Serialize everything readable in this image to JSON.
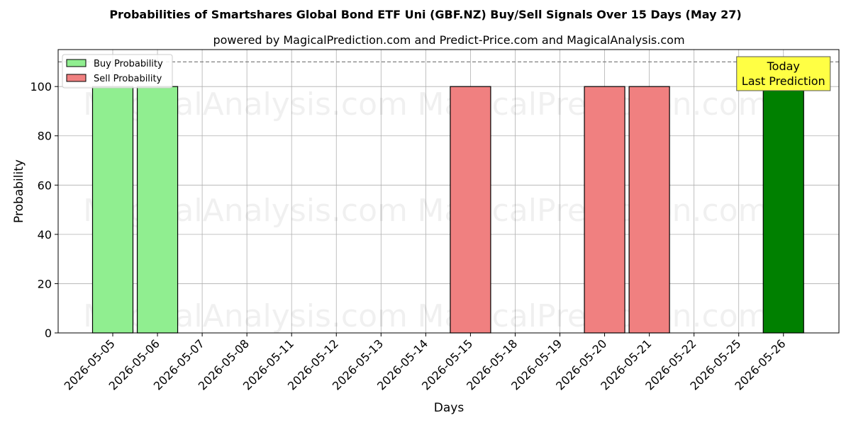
{
  "chart_data": {
    "type": "bar",
    "title": "Probabilities of Smartshares Global Bond ETF Uni (GBF.NZ) Buy/Sell Signals Over 15 Days (May 27)",
    "subtitle": "powered by MagicalPrediction.com and Predict-Price.com and MagicalAnalysis.com",
    "xlabel": "Days",
    "ylabel": "Probability",
    "ylim": [
      0,
      115
    ],
    "yticks": [
      0,
      20,
      40,
      60,
      80,
      100
    ],
    "grid": true,
    "legend_position": "top-left",
    "categories": [
      "2026-05-05",
      "2026-05-06",
      "2026-05-07",
      "2026-05-08",
      "2026-05-11",
      "2026-05-12",
      "2026-05-13",
      "2026-05-14",
      "2026-05-15",
      "2026-05-18",
      "2026-05-19",
      "2026-05-20",
      "2026-05-21",
      "2026-05-22",
      "2026-05-25",
      "2026-05-26"
    ],
    "series": [
      {
        "name": "Buy Probability",
        "color": "#90ee90",
        "values": [
          100,
          100,
          0,
          0,
          0,
          0,
          0,
          0,
          0,
          0,
          0,
          0,
          0,
          0,
          0,
          100
        ]
      },
      {
        "name": "Sell Probability",
        "color": "#f08080",
        "values": [
          0,
          0,
          0,
          0,
          0,
          0,
          0,
          0,
          100,
          0,
          0,
          100,
          100,
          0,
          0,
          0
        ]
      }
    ],
    "highlight": {
      "category": "2026-05-26",
      "series": "Buy Probability",
      "color": "#008000"
    },
    "reference_line": {
      "y": 110,
      "style": "dashed",
      "color": "#808080"
    },
    "annotation": {
      "lines": [
        "Today",
        "Last Prediction"
      ],
      "background": "#ffff44"
    },
    "watermarks": [
      "MagicalAnalysis.com",
      "MagicalPrediction.com"
    ]
  }
}
